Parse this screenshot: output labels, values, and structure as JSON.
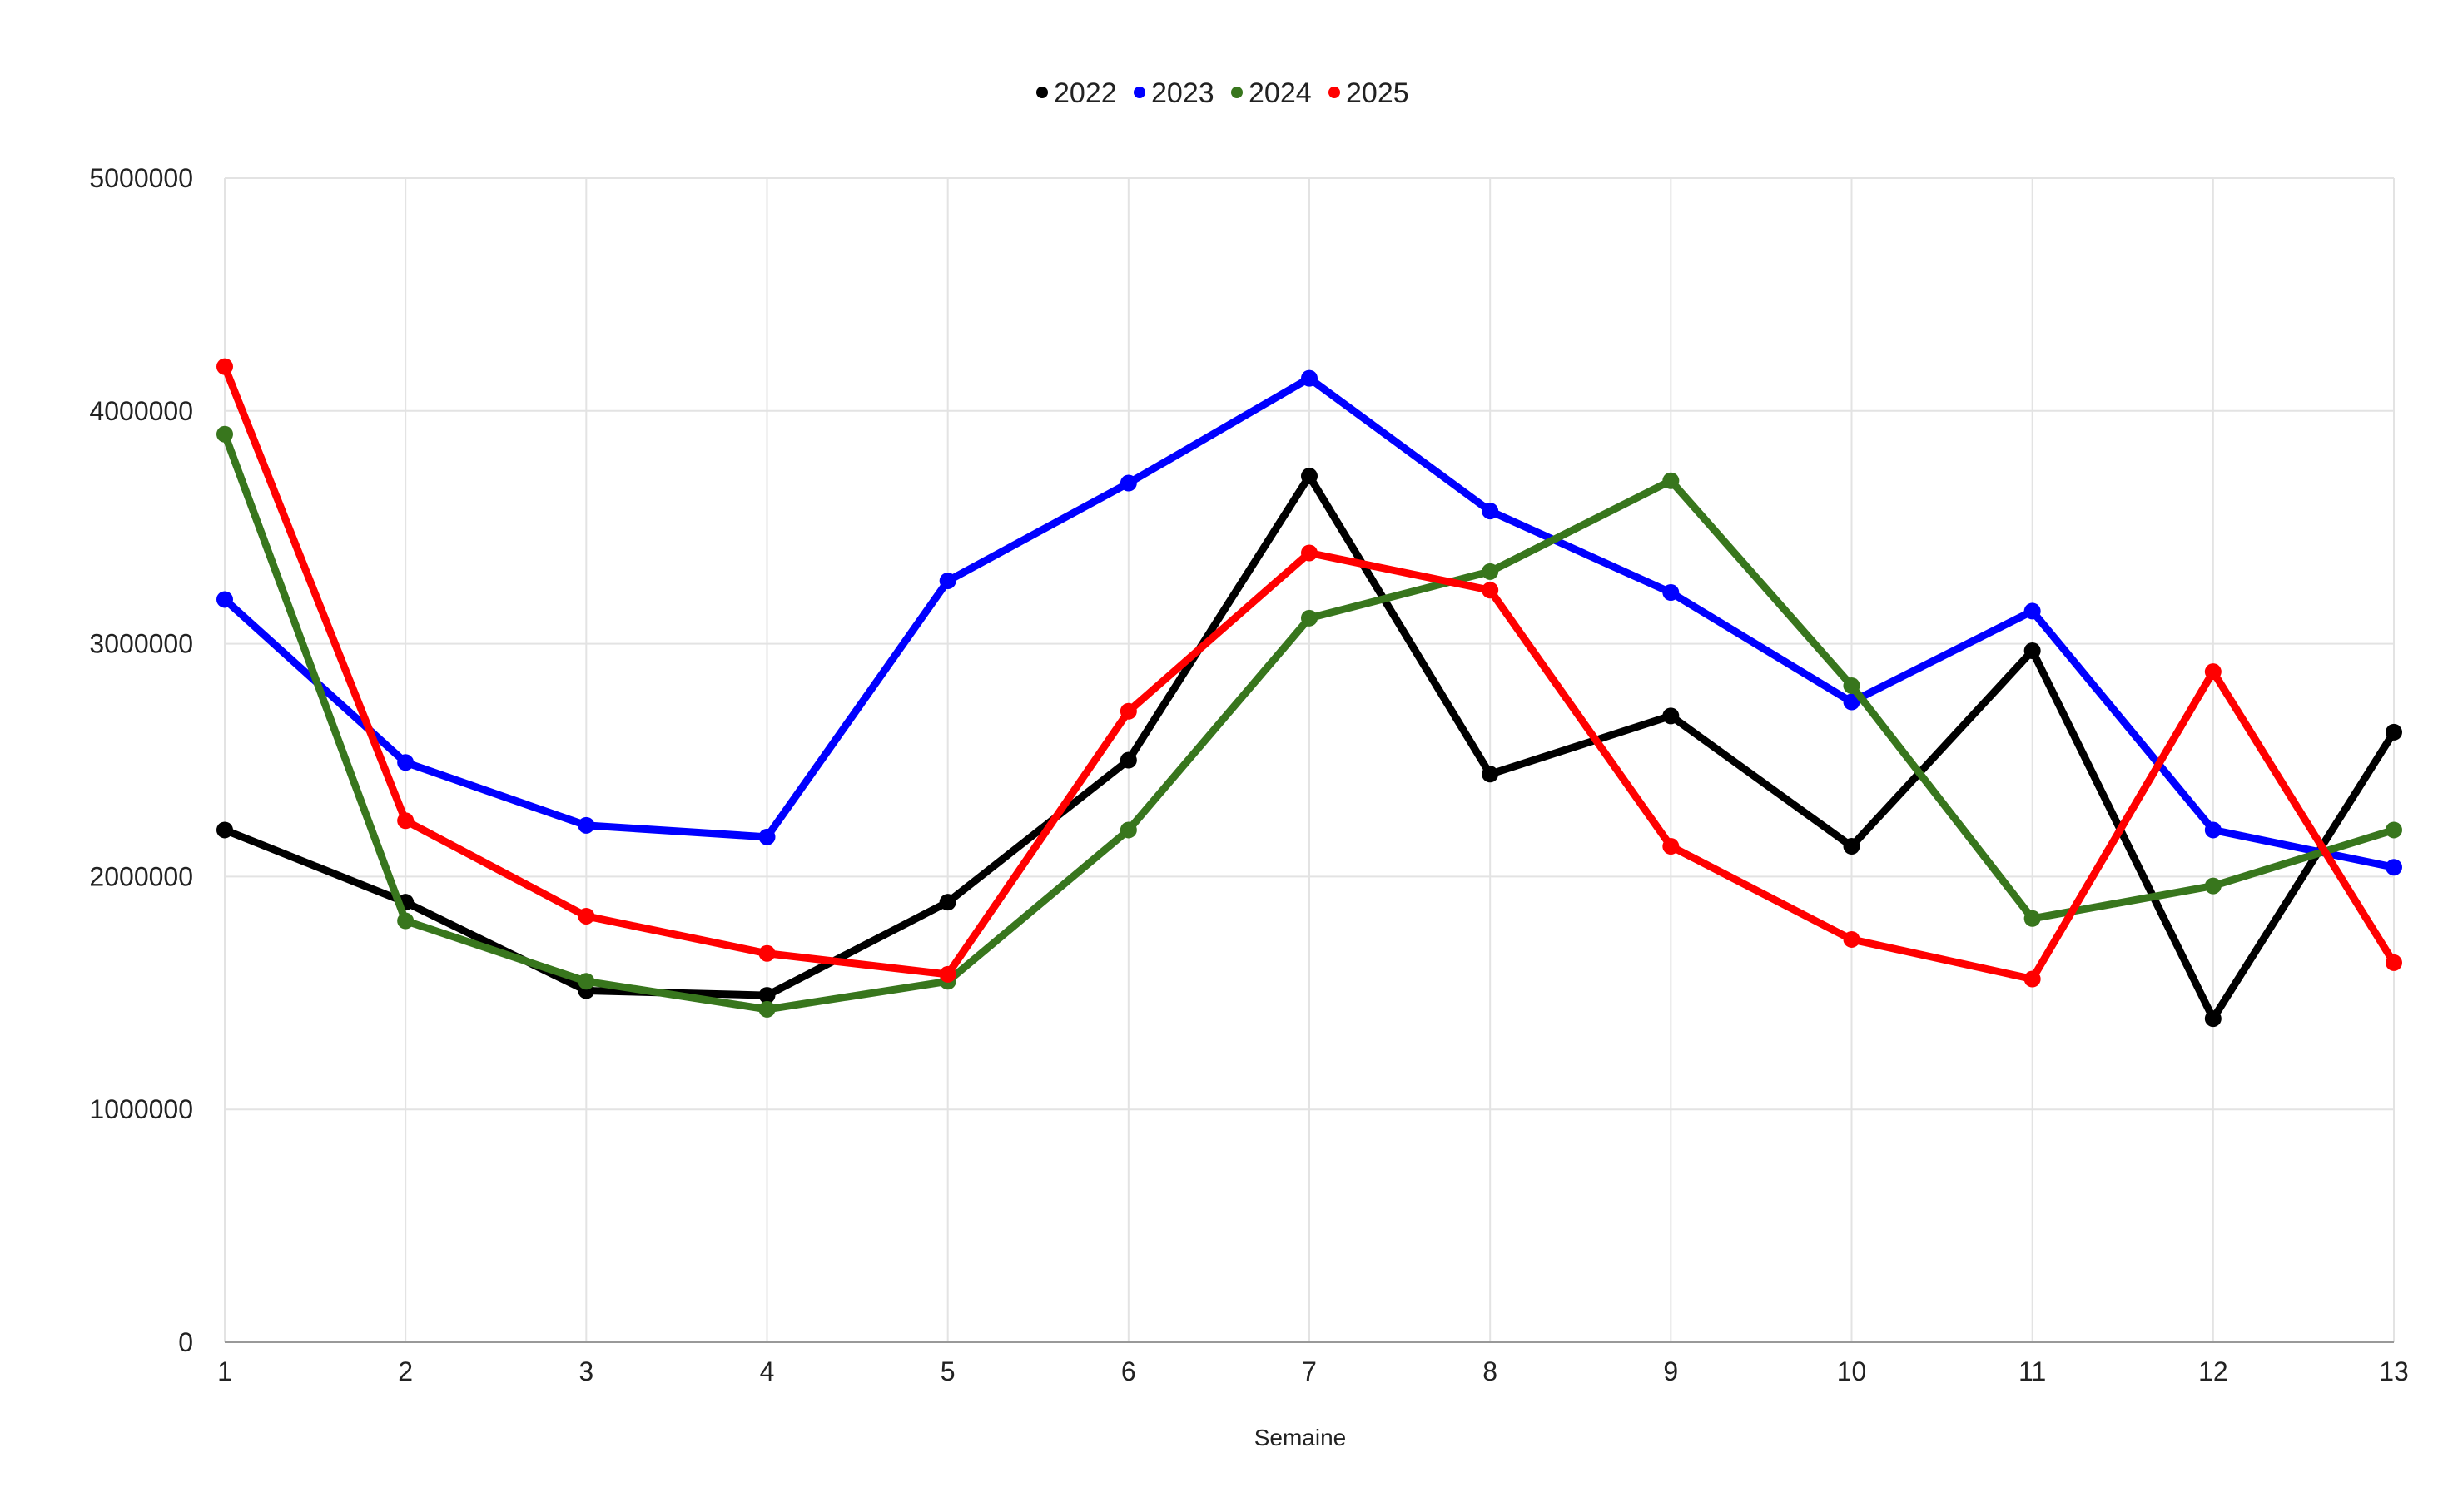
{
  "chart_data": {
    "type": "line",
    "title": "",
    "xlabel": "Semaine",
    "ylabel": "",
    "x": [
      1,
      2,
      3,
      4,
      5,
      6,
      7,
      8,
      9,
      10,
      11,
      12,
      13
    ],
    "x_tick_labels": [
      "1",
      "2",
      "3",
      "4",
      "5",
      "6",
      "7",
      "8",
      "9",
      "10",
      "11",
      "12",
      "13"
    ],
    "y_tick_labels": [
      "0",
      "1000000",
      "2000000",
      "3000000",
      "4000000",
      "5000000"
    ],
    "y_ticks": [
      0,
      1000000,
      2000000,
      3000000,
      4000000,
      5000000
    ],
    "ylim": [
      0,
      5000000
    ],
    "xlim": [
      1,
      13
    ],
    "grid": true,
    "legend_position": "top",
    "series": [
      {
        "name": "2022",
        "color": "#000000",
        "values": [
          2200000,
          1890000,
          1510000,
          1490000,
          1890000,
          2500000,
          3720000,
          2440000,
          2690000,
          2130000,
          2970000,
          1390000,
          2620000
        ]
      },
      {
        "name": "2023",
        "color": "#0000ff",
        "values": [
          3190000,
          2490000,
          2220000,
          2170000,
          3270000,
          3690000,
          4140000,
          3570000,
          3220000,
          2750000,
          3140000,
          2200000,
          2040000
        ]
      },
      {
        "name": "2024",
        "color": "#38761d",
        "values": [
          3900000,
          1810000,
          1550000,
          1430000,
          1550000,
          2200000,
          3110000,
          3310000,
          3700000,
          2820000,
          1820000,
          1960000,
          2200000
        ]
      },
      {
        "name": "2025",
        "color": "#ff0000",
        "values": [
          4190000,
          2240000,
          1830000,
          1670000,
          1580000,
          2710000,
          3390000,
          3230000,
          2130000,
          1730000,
          1560000,
          2880000,
          1630000
        ]
      }
    ]
  }
}
